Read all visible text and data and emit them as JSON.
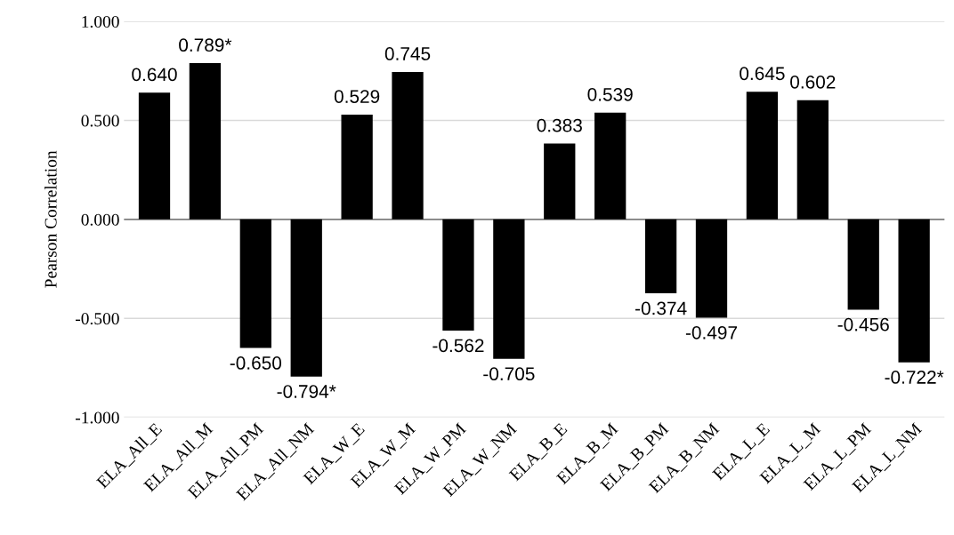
{
  "chart_data": {
    "type": "bar",
    "ylabel": "Pearson Correlation",
    "categories": [
      "ELA_All_E",
      "ELA_All_M",
      "ELA_All_PM",
      "ELA_All_NM",
      "ELA_W_E",
      "ELA_W_M",
      "ELA_W_PM",
      "ELA_W_NM",
      "ELA_B_E",
      "ELA_B_M",
      "ELA_B_PM",
      "ELA_B_NM",
      "ELA_L_E",
      "ELA_L_M",
      "ELA_L_PM",
      "ELA_L_NM"
    ],
    "values": [
      0.64,
      0.789,
      -0.65,
      -0.794,
      0.529,
      0.745,
      -0.562,
      -0.705,
      0.383,
      0.539,
      -0.374,
      -0.497,
      0.645,
      0.602,
      -0.456,
      -0.722
    ],
    "value_labels": [
      "0.640",
      "0.789*",
      "-0.650",
      "-0.794*",
      "0.529",
      "0.745",
      "-0.562",
      "-0.705",
      "0.383",
      "0.539",
      "-0.374",
      "-0.497",
      "0.645",
      "0.602",
      "-0.456",
      "-0.722*"
    ],
    "color": "#000000",
    "ylim": [
      -1.0,
      1.0
    ],
    "yticks": [
      {
        "value": -1.0,
        "label": "-1.000"
      },
      {
        "value": -0.5,
        "label": "-0.500"
      },
      {
        "value": 0.0,
        "label": "0.000"
      },
      {
        "value": 0.5,
        "label": "0.500"
      },
      {
        "value": 1.0,
        "label": "1.000"
      }
    ],
    "grid": "y"
  }
}
